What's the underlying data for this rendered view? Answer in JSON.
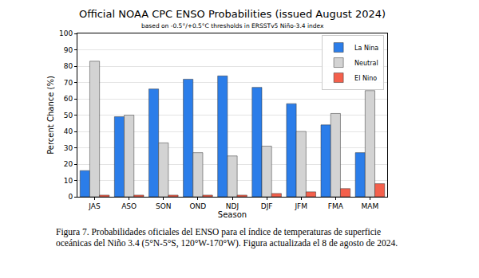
{
  "chart_data": {
    "type": "bar",
    "title": "Official NOAA CPC ENSO Probabilities (issued August 2024)",
    "subtitle": "based on -0.5°/+0.5°C thresholds in ERSSTv5 Niño-3.4 index",
    "x_label": "Season",
    "y_label": "Percent Chance (%)",
    "categories": [
      "JAS",
      "ASO",
      "SON",
      "OND",
      "NDJ",
      "DJF",
      "JFM",
      "FMA",
      "MAM"
    ],
    "series": [
      {
        "name": "La Nina",
        "color": "#2b7de9",
        "values": [
          16,
          49,
          66,
          72,
          74,
          67,
          57,
          44,
          27
        ]
      },
      {
        "name": "Neutral",
        "color": "#d3d3d3",
        "values": [
          83,
          50,
          33,
          27,
          25,
          31,
          40,
          51,
          65
        ]
      },
      {
        "name": "El Nino",
        "color": "#f4604c",
        "values": [
          1,
          1,
          1,
          1,
          1,
          2,
          3,
          5,
          8
        ]
      }
    ],
    "ylim": [
      0,
      100
    ],
    "yticks": [
      0,
      10,
      20,
      30,
      40,
      50,
      60,
      70,
      80,
      90,
      100
    ],
    "grid": true,
    "legend": "upper right",
    "caption": "Figura 7. Probabilidades oficiales del ENSO para el índice de temperaturas de superficie oceánicas del Niño 3.4 (5°N-5°S, 120°W-170°W). Figura actualizada el 8 de agosto de 2024."
  }
}
